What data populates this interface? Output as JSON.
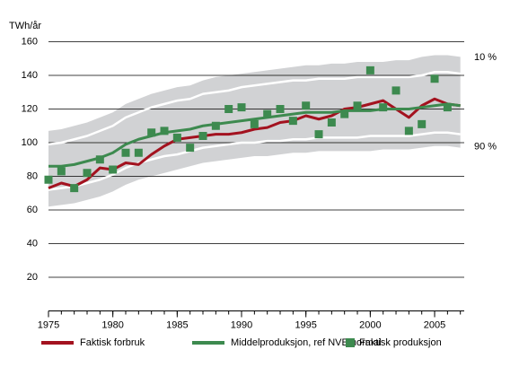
{
  "chart_data": {
    "type": "line",
    "y_label": "TWh/år",
    "x": [
      1975,
      1976,
      1977,
      1978,
      1979,
      1980,
      1981,
      1982,
      1983,
      1984,
      1985,
      1986,
      1987,
      1988,
      1989,
      1990,
      1991,
      1992,
      1993,
      1994,
      1995,
      1996,
      1997,
      1998,
      1999,
      2000,
      2001,
      2002,
      2003,
      2004,
      2005,
      2006,
      2007
    ],
    "xlim": [
      1975,
      2007.3
    ],
    "xticks": [
      1975,
      1980,
      1985,
      1990,
      1995,
      2000,
      2005
    ],
    "ylim": [
      0,
      160
    ],
    "yticks": [
      20,
      40,
      60,
      80,
      100,
      120,
      140,
      160
    ],
    "grid": true,
    "band": {
      "color": "#d1d2d4",
      "upper": [
        107,
        108,
        110,
        112,
        115,
        118,
        123,
        126,
        129,
        131,
        133,
        134,
        137,
        139,
        140,
        141,
        142,
        143,
        144,
        145,
        146,
        146,
        147,
        147,
        148,
        148,
        148,
        149,
        149,
        151,
        152,
        152,
        151
      ],
      "lower": [
        62,
        63,
        64,
        66,
        68,
        71,
        75,
        78,
        80,
        82,
        84,
        86,
        88,
        89,
        90,
        91,
        92,
        92,
        93,
        94,
        94,
        95,
        95,
        95,
        95,
        95,
        96,
        96,
        96,
        97,
        98,
        98,
        97
      ]
    },
    "percentiles": [
      {
        "label": "10 %",
        "color": "#ffffff",
        "values": [
          99,
          100,
          102,
          104,
          107,
          110,
          115,
          118,
          121,
          123,
          125,
          126,
          129,
          130,
          131,
          133,
          134,
          135,
          136,
          137,
          137,
          138,
          138,
          138,
          139,
          139,
          139,
          139,
          139,
          140,
          142,
          142,
          141
        ]
      },
      {
        "label": "90 %",
        "color": "#ffffff",
        "values": [
          72,
          73,
          74,
          76,
          78,
          81,
          85,
          88,
          90,
          92,
          93,
          95,
          97,
          98,
          99,
          100,
          100,
          101,
          101,
          102,
          102,
          103,
          103,
          103,
          103,
          104,
          104,
          104,
          104,
          105,
          106,
          106,
          105
        ]
      }
    ],
    "series": [
      {
        "name": "Faktisk forbruk",
        "color": "#a3121f",
        "marker": "line",
        "values": [
          73,
          76,
          74,
          78,
          85,
          84,
          88,
          87,
          93,
          98,
          102,
          103,
          104,
          105,
          105,
          106,
          108,
          109,
          112,
          113,
          116,
          114,
          116,
          120,
          121,
          123,
          125,
          120,
          115,
          122,
          126,
          123,
          122
        ]
      },
      {
        "name": "Middelproduksjon, ref NVE normal",
        "color": "#3d8a4f",
        "marker": "line",
        "values": [
          86,
          86,
          87,
          89,
          91,
          94,
          99,
          102,
          104,
          106,
          107,
          108,
          110,
          111,
          112,
          113,
          114,
          115,
          116,
          117,
          118,
          118,
          118,
          119,
          119,
          119,
          120,
          120,
          120,
          121,
          122,
          123,
          122
        ]
      },
      {
        "name": "Faktisk produksjon",
        "color": "#3d8a4f",
        "marker": "square",
        "values": [
          78,
          83,
          73,
          82,
          90,
          84,
          94,
          94,
          106,
          107,
          103,
          97,
          104,
          110,
          120,
          121,
          111,
          117,
          120,
          113,
          122,
          105,
          112,
          117,
          122,
          143,
          121,
          131,
          107,
          111,
          138,
          121,
          null
        ]
      }
    ]
  }
}
